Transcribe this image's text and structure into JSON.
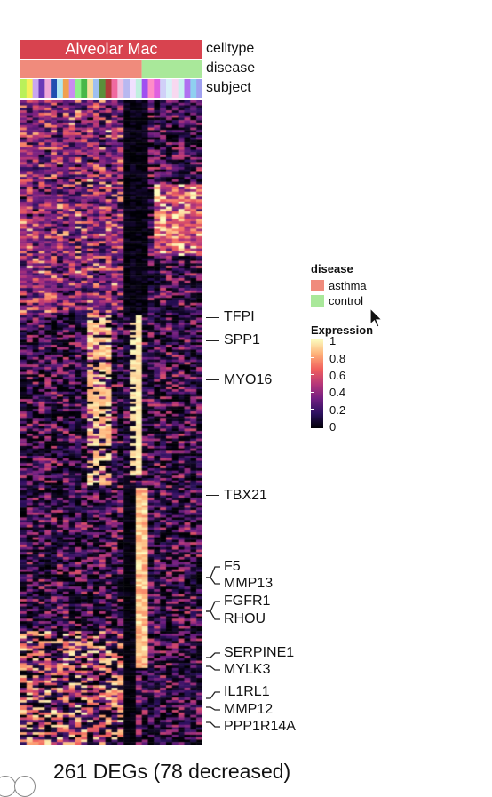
{
  "chart_data": {
    "type": "heatmap",
    "rows": 261,
    "columns": 30,
    "tracks": {
      "celltype": {
        "label": "celltype",
        "value": "Alveolar Mac",
        "color": "#d8434f"
      },
      "disease": {
        "label": "disease",
        "groups": [
          {
            "name": "asthma",
            "columns": 20,
            "color": "#f08b7c"
          },
          {
            "name": "control",
            "columns": 10,
            "color": "#a9e89a"
          }
        ]
      },
      "subject": {
        "label": "subject",
        "colors": [
          "#b9f05a",
          "#f5ef5a",
          "#c9a6ef",
          "#6a38b8",
          "#f0a8d8",
          "#1f4fb0",
          "#b0e8f0",
          "#f0a050",
          "#c98cf0",
          "#8ff08a",
          "#48b848",
          "#f5e0a0",
          "#9fbff0",
          "#5a8f3a",
          "#b03a3a",
          "#f06aa0",
          "#f0c0e0",
          "#b8b8f0",
          "#f0e0ff",
          "#c0f0e0",
          "#a050f0",
          "#ff8cc8",
          "#e060e0",
          "#d0d0f8",
          "#d8f0f8",
          "#f8d8f0",
          "#c8f0f0",
          "#b070f0",
          "#8fd0f0",
          "#a0a0f0"
        ]
      }
    },
    "legend": {
      "disease_title": "disease",
      "items": [
        {
          "label": "asthma",
          "color": "#f08b7c"
        },
        {
          "label": "control",
          "color": "#a9e89a"
        }
      ],
      "expression_title": "Expression",
      "ticks": [
        "1",
        "0.8",
        "0.6",
        "0.4",
        "0.2",
        "0"
      ],
      "range": [
        0,
        1
      ],
      "colormap": [
        "#000004",
        "#2c115f",
        "#721f81",
        "#b73779",
        "#f1605d",
        "#feb078",
        "#fcfdbf"
      ]
    },
    "genes": [
      "TFPI",
      "SPP1",
      "MYO16",
      "TBX21",
      "F5",
      "MMP13",
      "FGFR1",
      "RHOU",
      "SERPINE1",
      "MYLK3",
      "IL1RL1",
      "MMP12",
      "PPP1R14A"
    ],
    "caption": "261 DEGs (78 decreased)"
  }
}
